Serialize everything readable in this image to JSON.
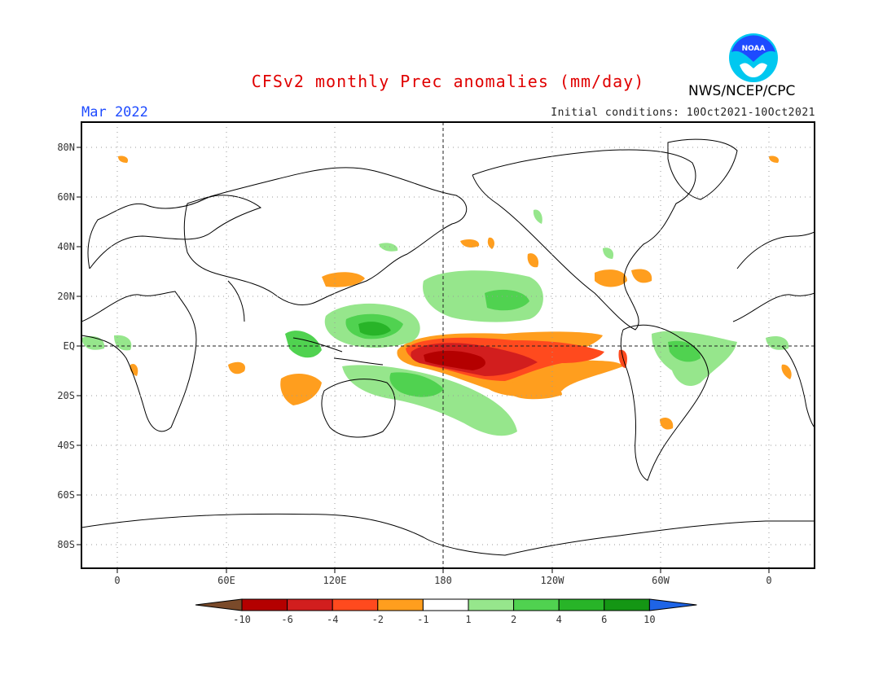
{
  "header": {
    "title": "CFSv2 monthly Prec anomalies (mm/day)",
    "month": "Mar 2022",
    "initial_conditions": "Initial conditions: 10Oct2021-10Oct2021",
    "agency": "NWS/NCEP/CPC",
    "logo_text": "NOAA"
  },
  "axes": {
    "lat_labels": [
      "80N",
      "60N",
      "40N",
      "20N",
      "EQ",
      "20S",
      "40S",
      "60S",
      "80S"
    ],
    "lon_labels": [
      "0",
      "60E",
      "120E",
      "180",
      "120W",
      "60W",
      "0"
    ]
  },
  "colorbar": {
    "labels": [
      "-10",
      "-6",
      "-4",
      "-2",
      "-1",
      "1",
      "2",
      "4",
      "6",
      "10"
    ],
    "colors": [
      "#7a4a2a",
      "#b40000",
      "#d21e1e",
      "#ff4a1e",
      "#ff9e1e",
      "#ffffff",
      "#96e68c",
      "#50d250",
      "#28b428",
      "#149614",
      "#1e64e6"
    ]
  },
  "colors": {
    "title": "#e00000",
    "month": "#1e4bff",
    "logo_blue": "#1e4bff",
    "logo_cyan": "#00c8f0"
  }
}
